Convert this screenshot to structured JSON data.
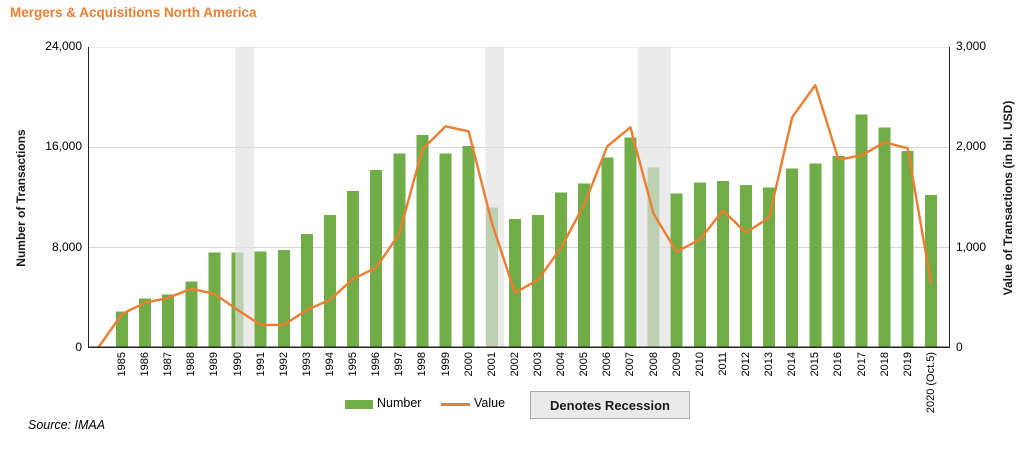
{
  "title": "Mergers & Acquisitions North America",
  "source": "Source: IMAA",
  "legend": {
    "number_label": "Number",
    "value_label": "Value",
    "recession_label": "Denotes Recession"
  },
  "y_left": {
    "title": "Number of Transactions",
    "ticks": [
      {
        "label": "24,000",
        "v": 24000
      },
      {
        "label": "16,000",
        "v": 16000
      },
      {
        "label": "8,000",
        "v": 8000
      },
      {
        "label": "0",
        "v": 0
      }
    ]
  },
  "y_right": {
    "title": "Value of Transactions (in bil. USD)",
    "ticks": [
      {
        "label": "3,000",
        "v": 3000
      },
      {
        "label": "2,000",
        "v": 2000
      },
      {
        "label": "1,000",
        "v": 1000
      },
      {
        "label": "0",
        "v": 0
      }
    ]
  },
  "chart_data": {
    "type": "bar+line combo",
    "title": "Mergers & Acquisitions North America",
    "categories": [
      "1985",
      "1986",
      "1987",
      "1988",
      "1989",
      "1990",
      "1991",
      "1992",
      "1993",
      "1994",
      "1995",
      "1996",
      "1997",
      "1998",
      "1999",
      "2000",
      "2001",
      "2002",
      "2003",
      "2004",
      "2005",
      "2006",
      "2007",
      "2008",
      "2009",
      "2010",
      "2011",
      "2012",
      "2013",
      "2014",
      "2015",
      "2016",
      "2017",
      "2018",
      "2019",
      "2020 (Oct.5)"
    ],
    "series": [
      {
        "name": "Number",
        "type": "bar",
        "axis": "left",
        "color": "#70AD47",
        "values": [
          2900,
          3950,
          4250,
          5300,
          7600,
          7600,
          7700,
          7800,
          9100,
          10600,
          12500,
          14200,
          15500,
          17000,
          15500,
          16100,
          11200,
          10300,
          10600,
          12400,
          13100,
          15200,
          16800,
          14400,
          12300,
          13200,
          13300,
          13000,
          12800,
          14300,
          14700,
          15300,
          18600,
          17600,
          15700,
          12200
        ]
      },
      {
        "name": "Value",
        "type": "line",
        "axis": "right",
        "color": "#ED7D31",
        "values": [
          340,
          450,
          500,
          590,
          540,
          380,
          230,
          230,
          380,
          480,
          690,
          800,
          1140,
          1980,
          2210,
          2160,
          1250,
          550,
          680,
          1000,
          1430,
          2010,
          2200,
          1340,
          960,
          1080,
          1370,
          1150,
          1300,
          2300,
          2620,
          1880,
          1920,
          2050,
          1990,
          650
        ]
      }
    ],
    "left_axis_label": "Number of Transactions",
    "right_axis_label": "Value of Transactions (in bil. USD)",
    "left_axis_range": [
      0,
      24000
    ],
    "right_axis_range": [
      0,
      3000
    ],
    "gridlines_left_values": [
      8000,
      16000,
      24000
    ],
    "grid": "horizontal only",
    "legend_position": "bottom center",
    "line_leadin_from_zero": true,
    "recession_bands": [
      {
        "start_year": 1989.9,
        "end_year": 1990.72
      },
      {
        "start_year": 2000.72,
        "end_year": 2001.53
      },
      {
        "start_year": 2007.31,
        "end_year": 2008.74
      }
    ],
    "colors": {
      "bar": "#70AD47",
      "line": "#ED7D31",
      "title": "#ED7D31",
      "gridline": "#D6D6D6",
      "axis_line": "#262626",
      "recession_band": "rgba(225,225,225,0.68)"
    }
  }
}
